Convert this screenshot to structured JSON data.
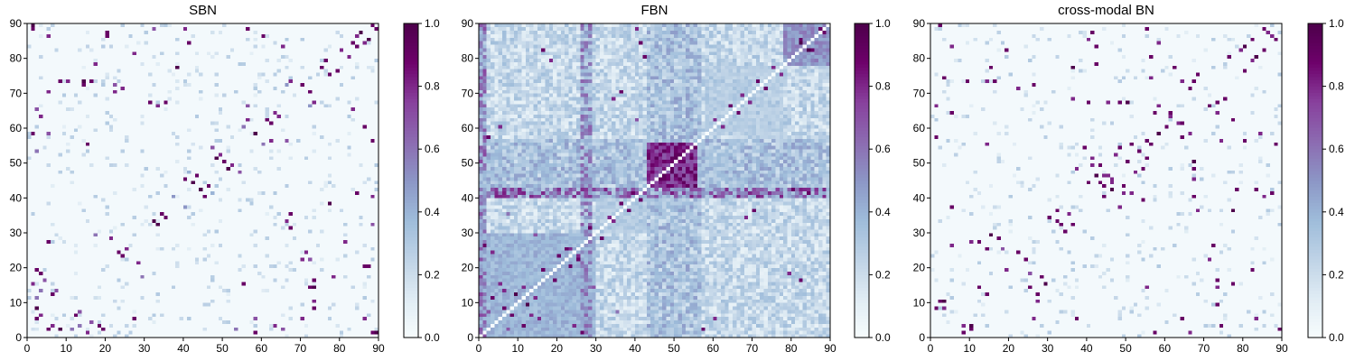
{
  "chart_data": [
    {
      "type": "heatmap",
      "title": "SBN",
      "xlim": [
        0,
        90
      ],
      "ylim": [
        0,
        90
      ],
      "xticks": [
        "0",
        "10",
        "20",
        "30",
        "40",
        "50",
        "60",
        "70",
        "80",
        "90"
      ],
      "yticks": [
        "0",
        "10",
        "20",
        "30",
        "40",
        "50",
        "60",
        "70",
        "80",
        "90"
      ],
      "colorbar": {
        "range": [
          0.0,
          1.0
        ],
        "ticks": [
          "0.0",
          "0.2",
          "0.4",
          "0.6",
          "0.8",
          "1.0"
        ]
      },
      "colormap": [
        "#f7fcfd",
        "#e0ecf4",
        "#bfd3e6",
        "#9ebcda",
        "#8c96c6",
        "#8c6bb1",
        "#88419d",
        "#6e016b",
        "#4d004b"
      ],
      "grid_size": 90,
      "background_level": 0.02,
      "diagonal": null,
      "blocks": [],
      "bands": [],
      "spots": [
        [
          2,
          5,
          0.9
        ],
        [
          6,
          3,
          0.8
        ],
        [
          8,
          2,
          1.0
        ],
        [
          12,
          6,
          0.9
        ],
        [
          15,
          1,
          0.8
        ],
        [
          16,
          4,
          0.7
        ],
        [
          19,
          2,
          0.9
        ],
        [
          27,
          5,
          0.9
        ],
        [
          32,
          33,
          1.0
        ],
        [
          35,
          34,
          0.9
        ],
        [
          40,
          45,
          0.9
        ],
        [
          42,
          44,
          0.8
        ],
        [
          44,
          42,
          1.0
        ],
        [
          46,
          43,
          0.9
        ],
        [
          48,
          51,
          1.0
        ],
        [
          50,
          50,
          0.9
        ],
        [
          52,
          49,
          0.8
        ],
        [
          54,
          47,
          0.7
        ],
        [
          58,
          58,
          1.0
        ],
        [
          61,
          62,
          0.9
        ],
        [
          64,
          63,
          0.8
        ],
        [
          56,
          66,
          0.7
        ],
        [
          72,
          70,
          0.9
        ],
        [
          73,
          67,
          0.8
        ],
        [
          79,
          76,
          0.9
        ],
        [
          82,
          80,
          0.8
        ],
        [
          84,
          83,
          0.9
        ],
        [
          85,
          87,
          1.0
        ],
        [
          88,
          89,
          0.9
        ],
        [
          86,
          84,
          0.8
        ],
        [
          8,
          73,
          0.9
        ],
        [
          10,
          73,
          0.8
        ],
        [
          14,
          73,
          1.0
        ],
        [
          16,
          73,
          0.9
        ],
        [
          22,
          72,
          0.7
        ],
        [
          24,
          71,
          0.8
        ],
        [
          31,
          67,
          0.9
        ],
        [
          33,
          66,
          0.8
        ],
        [
          35,
          67,
          0.9
        ],
        [
          1,
          88,
          0.9
        ],
        [
          5,
          86,
          0.8
        ],
        [
          20,
          87,
          0.9
        ],
        [
          38,
          77,
          1.0
        ],
        [
          40,
          88,
          0.8
        ],
        [
          56,
          88,
          0.9
        ],
        [
          60,
          86,
          0.9
        ],
        [
          75,
          77,
          0.9
        ],
        [
          80,
          82,
          0.8
        ],
        [
          5,
          58,
          0.7
        ],
        [
          2,
          53,
          0.6
        ],
        [
          83,
          65,
          0.8
        ],
        [
          70,
          22,
          0.8
        ],
        [
          72,
          14,
          0.9
        ],
        [
          78,
          17,
          0.8
        ],
        [
          81,
          27,
          0.8
        ],
        [
          86,
          20,
          0.9
        ],
        [
          89,
          1,
          1.0
        ],
        [
          84,
          41,
          0.9
        ],
        [
          55,
          15,
          0.9
        ],
        [
          63,
          3,
          0.8
        ],
        [
          65,
          2,
          0.7
        ],
        [
          70,
          5,
          0.8
        ],
        [
          58,
          1,
          0.9
        ],
        [
          21,
          28,
          0.8
        ],
        [
          23,
          24,
          0.9
        ],
        [
          25,
          25,
          0.8
        ],
        [
          3,
          18,
          0.9
        ],
        [
          7,
          13,
          0.7
        ],
        [
          2,
          11,
          0.6
        ],
        [
          13,
          3,
          0.6
        ],
        [
          17,
          29,
          0.6
        ],
        [
          62,
          56,
          0.8
        ],
        [
          66,
          72,
          0.5
        ],
        [
          47,
          41,
          0.4
        ],
        [
          30,
          48,
          0.3
        ],
        [
          88,
          32,
          0.7
        ],
        [
          55,
          60,
          0.6
        ],
        [
          37,
          40,
          0.5
        ]
      ]
    },
    {
      "type": "heatmap",
      "title": "FBN",
      "xlim": [
        0,
        90
      ],
      "ylim": [
        0,
        90
      ],
      "xticks": [
        "0",
        "10",
        "20",
        "30",
        "40",
        "50",
        "60",
        "70",
        "80",
        "90"
      ],
      "yticks": [
        "0",
        "10",
        "20",
        "30",
        "40",
        "50",
        "60",
        "70",
        "80",
        "90"
      ],
      "colorbar": {
        "range": [
          0.0,
          1.0
        ],
        "ticks": [
          "0.0",
          "0.2",
          "0.4",
          "0.6",
          "0.8",
          "1.0"
        ]
      },
      "colormap": [
        "#f7fcfd",
        "#e0ecf4",
        "#bfd3e6",
        "#9ebcda",
        "#8c96c6",
        "#8c6bb1",
        "#88419d",
        "#6e016b",
        "#4d004b"
      ],
      "grid_size": 90,
      "background_level": 0.22,
      "diagonal": 0.0,
      "blocks": [
        {
          "from": 43,
          "to": 56,
          "level": 0.86
        },
        {
          "from": 0,
          "to": 30,
          "level": 0.42
        },
        {
          "from": 78,
          "to": 90,
          "level": 0.55
        },
        {
          "from": 30,
          "to": 43,
          "level": 0.3
        },
        {
          "from": 58,
          "to": 78,
          "level": 0.28
        }
      ],
      "bands": [
        {
          "axis": "col",
          "index": 43,
          "width": 14,
          "level": 0.32
        },
        {
          "axis": "row",
          "index": 43,
          "width": 14,
          "level": 0.32
        },
        {
          "axis": "col",
          "index": 0,
          "width": 2,
          "level": 0.5
        },
        {
          "axis": "col",
          "index": 26,
          "width": 3,
          "level": 0.45
        },
        {
          "axis": "row",
          "index": 40,
          "width": 3,
          "level": 0.55
        }
      ],
      "spots": [
        [
          3,
          11,
          0.9
        ],
        [
          6,
          13,
          0.8
        ],
        [
          8,
          6,
          0.9
        ],
        [
          12,
          9,
          1.0
        ],
        [
          14,
          11,
          0.8
        ],
        [
          19,
          16,
          0.9
        ],
        [
          22,
          25,
          0.9
        ],
        [
          25,
          23,
          0.8
        ],
        [
          28,
          31,
          0.9
        ],
        [
          33,
          34,
          0.8
        ],
        [
          36,
          38,
          0.9
        ],
        [
          39,
          41,
          0.9
        ],
        [
          60,
          62,
          0.8
        ],
        [
          64,
          66,
          0.9
        ],
        [
          67,
          69,
          0.8
        ],
        [
          73,
          71,
          0.9
        ],
        [
          77,
          75,
          0.8
        ],
        [
          82,
          84,
          1.0
        ],
        [
          85,
          82,
          0.9
        ],
        [
          87,
          88,
          0.9
        ],
        [
          2,
          57,
          0.9
        ],
        [
          5,
          60,
          0.8
        ],
        [
          80,
          42,
          0.9
        ],
        [
          84,
          41,
          0.9
        ],
        [
          88,
          40,
          0.8
        ],
        [
          68,
          34,
          0.8
        ],
        [
          70,
          36,
          0.9
        ],
        [
          62,
          40,
          0.7
        ],
        [
          16,
          82,
          0.9
        ],
        [
          18,
          79,
          0.8
        ],
        [
          1,
          26,
          0.9
        ],
        [
          3,
          24,
          0.8
        ],
        [
          7,
          2,
          0.7
        ],
        [
          15,
          5,
          0.8
        ],
        [
          23,
          20,
          0.9
        ],
        [
          35,
          7,
          0.6
        ],
        [
          29,
          14,
          0.7
        ]
      ]
    },
    {
      "type": "heatmap",
      "title": "cross-modal BN",
      "xlim": [
        0,
        90
      ],
      "ylim": [
        0,
        90
      ],
      "xticks": [
        "0",
        "10",
        "20",
        "30",
        "40",
        "50",
        "60",
        "70",
        "80",
        "90"
      ],
      "yticks": [
        "0",
        "10",
        "20",
        "30",
        "40",
        "50",
        "60",
        "70",
        "80",
        "90"
      ],
      "colorbar": {
        "range": [
          0.0,
          1.0
        ],
        "ticks": [
          "0.0",
          "0.2",
          "0.4",
          "0.6",
          "0.8",
          "1.0"
        ]
      },
      "colormap": [
        "#f7fcfd",
        "#e0ecf4",
        "#bfd3e6",
        "#9ebcda",
        "#8c96c6",
        "#8c6bb1",
        "#88419d",
        "#6e016b",
        "#4d004b"
      ],
      "grid_size": 90,
      "background_level": 0.02,
      "diagonal": null,
      "blocks": [],
      "bands": [],
      "spots": [
        [
          1,
          8,
          0.9
        ],
        [
          3,
          10,
          1.0
        ],
        [
          5,
          37,
          0.9
        ],
        [
          8,
          3,
          0.8
        ],
        [
          10,
          2,
          0.9
        ],
        [
          14,
          12,
          0.9
        ],
        [
          15,
          29,
          1.0
        ],
        [
          17,
          28,
          0.9
        ],
        [
          19,
          19,
          0.8
        ],
        [
          22,
          24,
          0.9
        ],
        [
          25,
          14,
          0.9
        ],
        [
          27,
          10,
          0.8
        ],
        [
          30,
          34,
          0.9
        ],
        [
          32,
          33,
          0.9
        ],
        [
          35,
          35,
          0.8
        ],
        [
          40,
          44,
          0.9
        ],
        [
          42,
          46,
          1.0
        ],
        [
          44,
          43,
          0.9
        ],
        [
          46,
          45,
          0.8
        ],
        [
          48,
          54,
          0.9
        ],
        [
          50,
          50,
          0.9
        ],
        [
          52,
          47,
          0.8
        ],
        [
          55,
          56,
          0.9
        ],
        [
          58,
          58,
          1.0
        ],
        [
          61,
          64,
          0.9
        ],
        [
          63,
          61,
          0.8
        ],
        [
          67,
          73,
          0.9
        ],
        [
          71,
          66,
          0.9
        ],
        [
          74,
          3,
          0.9
        ],
        [
          77,
          15,
          0.9
        ],
        [
          80,
          83,
          1.0
        ],
        [
          82,
          85,
          0.9
        ],
        [
          85,
          88,
          0.9
        ],
        [
          87,
          86,
          0.8
        ],
        [
          89,
          90,
          0.9
        ],
        [
          9,
          73,
          0.9
        ],
        [
          14,
          73,
          0.8
        ],
        [
          16,
          73,
          0.9
        ],
        [
          22,
          71,
          0.8
        ],
        [
          26,
          72,
          0.9
        ],
        [
          36,
          68,
          0.8
        ],
        [
          40,
          67,
          0.9
        ],
        [
          45,
          67,
          0.8
        ],
        [
          48,
          67,
          0.9
        ],
        [
          50,
          67,
          1.0
        ],
        [
          2,
          89,
          0.9
        ],
        [
          5,
          83,
          0.8
        ],
        [
          19,
          82,
          0.9
        ],
        [
          36,
          77,
          1.0
        ],
        [
          42,
          83,
          0.9
        ],
        [
          55,
          88,
          0.9
        ],
        [
          58,
          84,
          0.8
        ],
        [
          68,
          75,
          0.9
        ],
        [
          76,
          80,
          0.9
        ],
        [
          79,
          82,
          0.8
        ],
        [
          87,
          41,
          0.9
        ],
        [
          85,
          40,
          0.8
        ],
        [
          78,
          42,
          0.9
        ],
        [
          74,
          56,
          0.8
        ],
        [
          80,
          56,
          0.9
        ],
        [
          62,
          77,
          0.9
        ],
        [
          64,
          73,
          0.8
        ],
        [
          60,
          60,
          0.9
        ],
        [
          57,
          64,
          0.9
        ],
        [
          66,
          58,
          0.8
        ],
        [
          39,
          54,
          0.9
        ],
        [
          41,
          51,
          0.8
        ],
        [
          43,
          49,
          0.9
        ],
        [
          44,
          46,
          0.8
        ],
        [
          46,
          42,
          0.9
        ],
        [
          49,
          41,
          0.8
        ],
        [
          51,
          55,
          0.9
        ],
        [
          53,
          53,
          0.9
        ],
        [
          64,
          5,
          0.9
        ],
        [
          66,
          1,
          0.8
        ],
        [
          55,
          14,
          0.8
        ],
        [
          12,
          27,
          0.9
        ],
        [
          5,
          26,
          0.8
        ],
        [
          1,
          57,
          0.9
        ],
        [
          32,
          36,
          0.9
        ],
        [
          37,
          48,
          0.8
        ],
        [
          25,
          18,
          0.7
        ]
      ]
    }
  ]
}
